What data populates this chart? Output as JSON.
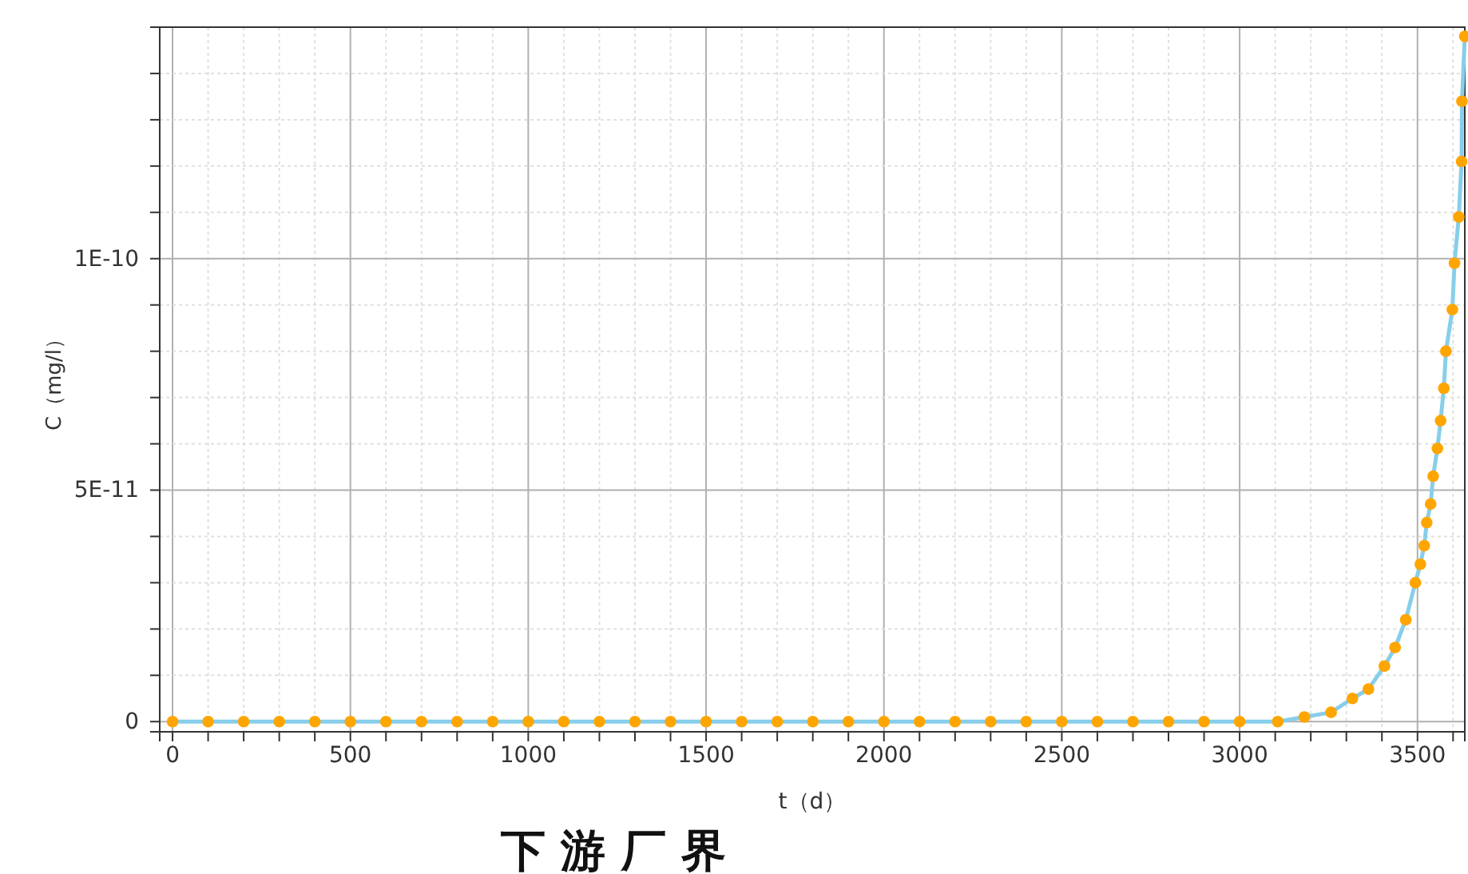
{
  "chart_data": {
    "type": "line",
    "title": "下 游 厂 界",
    "xlabel": "t（d）",
    "ylabel": "C（mg/l）",
    "xlim": [
      -36,
      3633
    ],
    "ylim": [
      -2.2e-12,
      1.5e-10
    ],
    "xticks": [
      0,
      {
        "value": 100,
        "label": null
      },
      {
        "value": 200,
        "label": null
      },
      {
        "value": 300,
        "label": null
      },
      {
        "value": 400,
        "label": null
      },
      500,
      {
        "value": 600,
        "label": null
      },
      {
        "value": 700,
        "label": null
      },
      {
        "value": 800,
        "label": null
      },
      {
        "value": 900,
        "label": null
      },
      1000,
      {
        "value": 1100,
        "label": null
      },
      {
        "value": 1200,
        "label": null
      },
      {
        "value": 1300,
        "label": null
      },
      {
        "value": 1400,
        "label": null
      },
      1500,
      {
        "value": 1600,
        "label": null
      },
      {
        "value": 1700,
        "label": null
      },
      {
        "value": 1800,
        "label": null
      },
      {
        "value": 1900,
        "label": null
      },
      2000,
      {
        "value": 2100,
        "label": null
      },
      {
        "value": 2200,
        "label": null
      },
      {
        "value": 2300,
        "label": null
      },
      {
        "value": 2400,
        "label": null
      },
      2500,
      {
        "value": 2600,
        "label": null
      },
      {
        "value": 2700,
        "label": null
      },
      {
        "value": 2800,
        "label": null
      },
      {
        "value": 2900,
        "label": null
      },
      3000,
      {
        "value": 3100,
        "label": null
      },
      {
        "value": 3200,
        "label": null
      },
      {
        "value": 3300,
        "label": null
      },
      {
        "value": 3400,
        "label": null
      },
      3500,
      {
        "value": 3600,
        "label": null
      }
    ],
    "yticks": [
      0,
      {
        "value": 1e-11,
        "label": null
      },
      {
        "value": 2e-11,
        "label": null
      },
      {
        "value": 3e-11,
        "label": null
      },
      {
        "value": 4e-11,
        "label": null
      },
      {
        "value": 5e-11,
        "label": "5E-11"
      },
      {
        "value": 6e-11,
        "label": null
      },
      {
        "value": 7e-11,
        "label": null
      },
      {
        "value": 8e-11,
        "label": null
      },
      {
        "value": 9e-11,
        "label": null
      },
      {
        "value": 1e-10,
        "label": "1E-10"
      },
      {
        "value": 1.1e-10,
        "label": null
      },
      {
        "value": 1.2e-10,
        "label": null
      },
      {
        "value": 1.3e-10,
        "label": null
      },
      {
        "value": 1.4e-10,
        "label": null
      }
    ],
    "grid": true,
    "marker": "circle",
    "line_style": "solid",
    "series": [
      {
        "color": "#87ceeb",
        "marker": "none",
        "x": [
          0,
          100,
          200,
          300,
          400,
          500,
          600,
          700,
          800,
          900,
          1000,
          1100,
          1200,
          1300,
          1400,
          1500,
          1600,
          1700,
          1800,
          1900,
          2000,
          2100,
          2200,
          2300,
          2400,
          2500,
          2600,
          2700,
          2800,
          2900,
          3000,
          3107,
          3182,
          3257,
          3317,
          3362,
          3407,
          3437,
          3467,
          3494,
          3508,
          3519,
          3526,
          3537,
          3544,
          3556,
          3565,
          3574,
          3580,
          3598,
          3604,
          3616,
          3624,
          3625,
          3633
        ],
        "values": [
          0,
          0,
          0,
          0,
          0,
          0,
          0,
          0,
          0,
          0,
          0,
          0,
          0,
          0,
          0,
          0,
          0,
          0,
          0,
          0,
          0,
          0,
          0,
          0,
          0,
          0,
          0,
          0,
          0,
          0,
          0,
          0,
          1e-12,
          2e-12,
          5e-12,
          7e-12,
          1.2e-11,
          1.6e-11,
          2.2e-11,
          3e-11,
          3.4e-11,
          3.8e-11,
          4.3e-11,
          4.7e-11,
          5.3e-11,
          5.9e-11,
          6.5e-11,
          7.2e-11,
          8e-11,
          8.9e-11,
          9.9e-11,
          1.09e-10,
          1.21e-10,
          1.34e-10,
          1.48e-10
        ]
      },
      {
        "type": "scatter",
        "color": "#ffa500",
        "x": [
          0,
          100,
          200,
          300,
          400,
          500,
          600,
          700,
          800,
          900,
          1000,
          1100,
          1200,
          1300,
          1400,
          1500,
          1600,
          1700,
          1800,
          1900,
          2000,
          2100,
          2200,
          2300,
          2400,
          2500,
          2600,
          2700,
          2800,
          2900,
          3000,
          3107,
          3182,
          3257,
          3317,
          3362,
          3407,
          3437,
          3467,
          3494,
          3508,
          3519,
          3526,
          3537,
          3544,
          3556,
          3565,
          3574,
          3580,
          3598,
          3604,
          3616,
          3624,
          3625,
          3633
        ],
        "values": [
          0,
          0,
          0,
          0,
          0,
          0,
          0,
          0,
          0,
          0,
          0,
          0,
          0,
          0,
          0,
          0,
          0,
          0,
          0,
          0,
          0,
          0,
          0,
          0,
          0,
          0,
          0,
          0,
          0,
          0,
          0,
          0,
          1e-12,
          2e-12,
          5e-12,
          7e-12,
          1.2e-11,
          1.6e-11,
          2.2e-11,
          3e-11,
          3.4e-11,
          3.8e-11,
          4.3e-11,
          4.7e-11,
          5.3e-11,
          5.9e-11,
          6.5e-11,
          7.2e-11,
          8e-11,
          8.9e-11,
          9.9e-11,
          1.09e-10,
          1.21e-10,
          1.34e-10,
          1.48e-10
        ]
      }
    ]
  }
}
